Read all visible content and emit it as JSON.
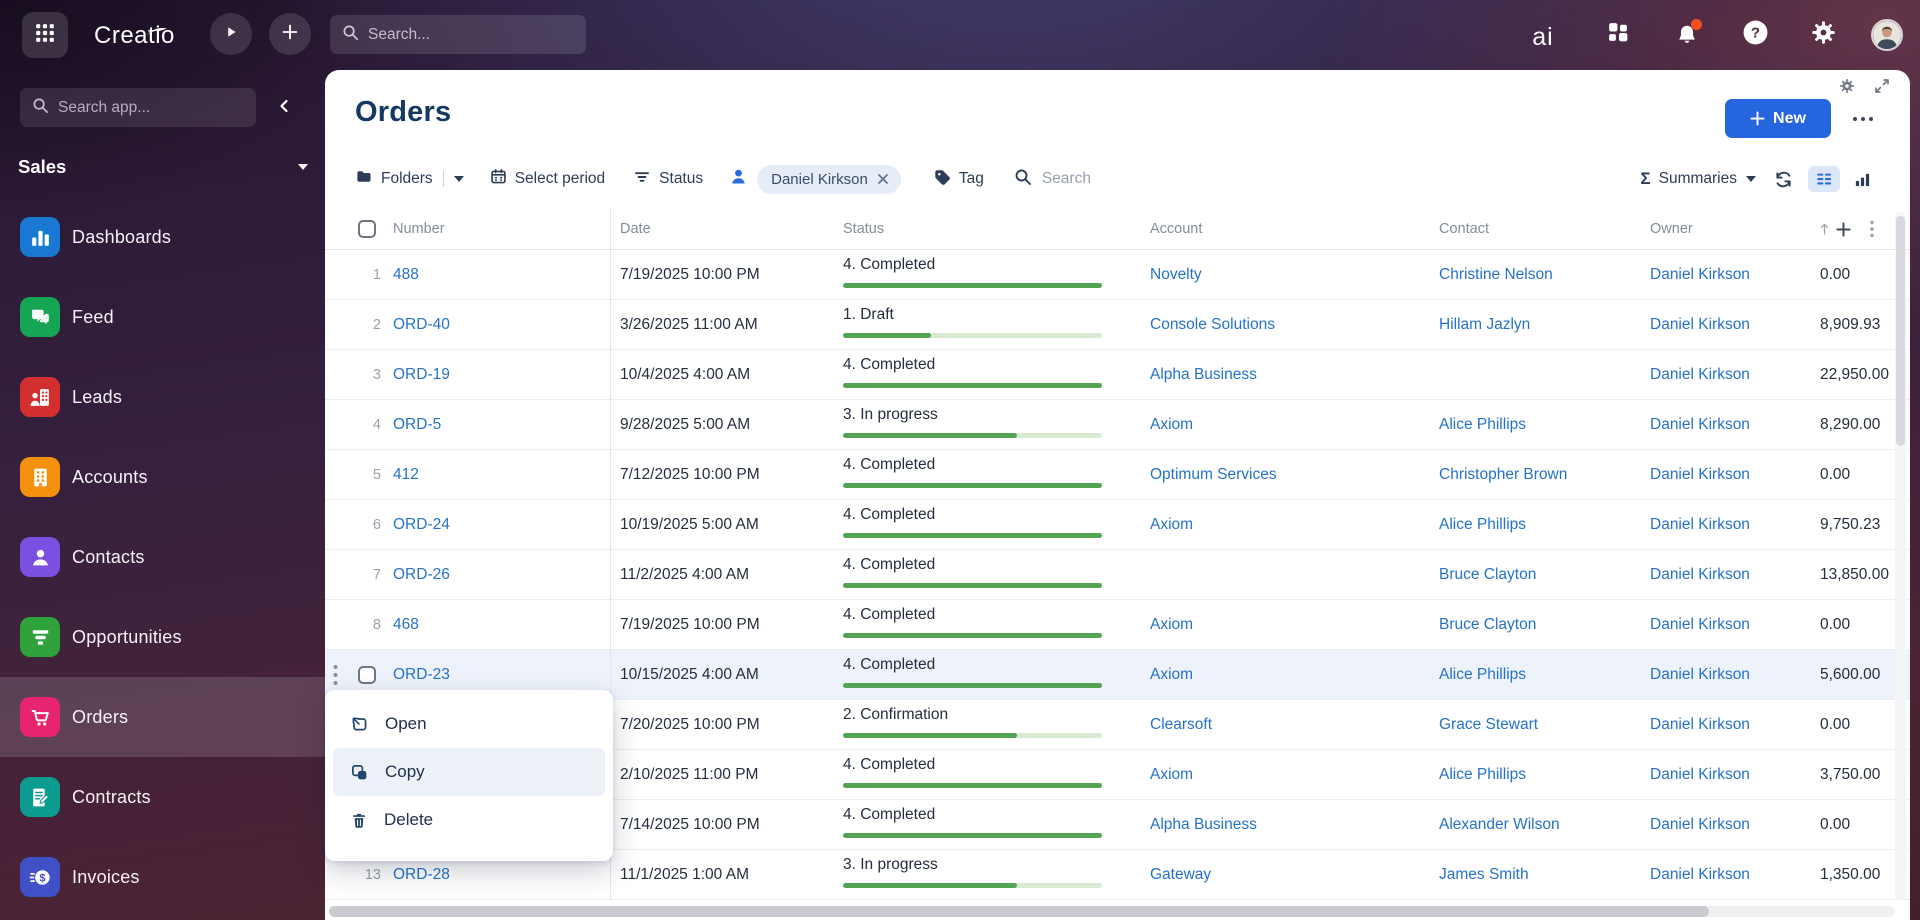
{
  "topbar": {
    "logo": "Creatio",
    "search_placeholder": "Search...",
    "copilot_label": "ai"
  },
  "sidebar": {
    "search_placeholder": "Search app...",
    "workspace": "Sales",
    "items": [
      {
        "label": "Dashboards",
        "icon": "bar-chart-icon",
        "color": "#1878d2",
        "selected": false
      },
      {
        "label": "Feed",
        "icon": "chat-icon",
        "color": "#16a455",
        "selected": false
      },
      {
        "label": "Leads",
        "icon": "lead-icon",
        "color": "#d42f2f",
        "selected": false
      },
      {
        "label": "Accounts",
        "icon": "building-icon",
        "color": "#f5900c",
        "selected": false
      },
      {
        "label": "Contacts",
        "icon": "person-icon",
        "color": "#7b4fe0",
        "selected": false
      },
      {
        "label": "Opportunities",
        "icon": "funnel-icon",
        "color": "#2fa33b",
        "selected": false
      },
      {
        "label": "Orders",
        "icon": "cart-icon",
        "color": "#e7256e",
        "selected": true
      },
      {
        "label": "Contracts",
        "icon": "contract-icon",
        "color": "#0b9b8f",
        "selected": false
      },
      {
        "label": "Invoices",
        "icon": "invoice-icon",
        "color": "#4150c6",
        "selected": false
      }
    ]
  },
  "page": {
    "title": "Orders",
    "new_button_label": "New",
    "filters": {
      "folders_label": "Folders",
      "select_period_label": "Select period",
      "status_label": "Status",
      "owner_chip": "Daniel Kirkson",
      "tag_label": "Tag",
      "search_placeholder": "Search"
    },
    "summaries_label": "Summaries"
  },
  "table": {
    "columns": [
      "Number",
      "Date",
      "Status",
      "Account",
      "Contact",
      "Owner"
    ],
    "header_icons": [
      "sort-up-icon",
      "add-column-icon",
      "column-menu-icon"
    ],
    "status_colors": {
      "track": "#d9ead3",
      "fill": "#55a455"
    },
    "rows": [
      {
        "num": "1",
        "number": "488",
        "date": "7/19/2025 10:00 PM",
        "status": "4. Completed",
        "progress": 1,
        "account": "Novelty",
        "contact": "Christine Nelson",
        "owner": "Daniel Kirkson",
        "total": "0.00",
        "hovered": false
      },
      {
        "num": "2",
        "number": "ORD-40",
        "date": "3/26/2025 11:00 AM",
        "status": "1. Draft",
        "progress": 0.34,
        "account": "Console Solutions",
        "contact": "Hillam Jazlyn",
        "owner": "Daniel Kirkson",
        "total": "8,909.93",
        "hovered": false
      },
      {
        "num": "3",
        "number": "ORD-19",
        "date": "10/4/2025 4:00 AM",
        "status": "4. Completed",
        "progress": 1,
        "account": "Alpha Business",
        "contact": "",
        "owner": "Daniel Kirkson",
        "total": "22,950.00",
        "hovered": false
      },
      {
        "num": "4",
        "number": "ORD-5",
        "date": "9/28/2025 5:00 AM",
        "status": "3. In progress",
        "progress": 0.67,
        "account": "Axiom",
        "contact": "Alice Phillips",
        "owner": "Daniel Kirkson",
        "total": "8,290.00",
        "hovered": false
      },
      {
        "num": "5",
        "number": "412",
        "date": "7/12/2025 10:00 PM",
        "status": "4. Completed",
        "progress": 1,
        "account": "Optimum Services",
        "contact": "Christopher Brown",
        "owner": "Daniel Kirkson",
        "total": "0.00",
        "hovered": false
      },
      {
        "num": "6",
        "number": "ORD-24",
        "date": "10/19/2025 5:00 AM",
        "status": "4. Completed",
        "progress": 1,
        "account": "Axiom",
        "contact": "Alice Phillips",
        "owner": "Daniel Kirkson",
        "total": "9,750.23",
        "hovered": false
      },
      {
        "num": "7",
        "number": "ORD-26",
        "date": "11/2/2025 4:00 AM",
        "status": "4. Completed",
        "progress": 1,
        "account": "",
        "contact": "Bruce Clayton",
        "owner": "Daniel Kirkson",
        "total": "13,850.00",
        "hovered": false
      },
      {
        "num": "8",
        "number": "468",
        "date": "7/19/2025 10:00 PM",
        "status": "4. Completed",
        "progress": 1,
        "account": "Axiom",
        "contact": "Bruce Clayton",
        "owner": "Daniel Kirkson",
        "total": "0.00",
        "hovered": false
      },
      {
        "num": "9",
        "number": "ORD-23",
        "date": "10/15/2025 4:00 AM",
        "status": "4. Completed",
        "progress": 1,
        "account": "Axiom",
        "contact": "Alice Phillips",
        "owner": "Daniel Kirkson",
        "total": "5,600.00",
        "hovered": true
      },
      {
        "num": "",
        "number": "",
        "date": "7/20/2025 10:00 PM",
        "status": "2. Confirmation",
        "progress": 0.67,
        "account": "Clearsoft",
        "contact": "Grace Stewart",
        "owner": "Daniel Kirkson",
        "total": "0.00",
        "hovered": false
      },
      {
        "num": "",
        "number": "",
        "date": "2/10/2025 11:00 PM",
        "status": "4. Completed",
        "progress": 1,
        "account": "Axiom",
        "contact": "Alice Phillips",
        "owner": "Daniel Kirkson",
        "total": "3,750.00",
        "hovered": false
      },
      {
        "num": "",
        "number": "",
        "date": "7/14/2025 10:00 PM",
        "status": "4. Completed",
        "progress": 1,
        "account": "Alpha Business",
        "contact": "Alexander Wilson",
        "owner": "Daniel Kirkson",
        "total": "0.00",
        "hovered": false
      },
      {
        "num": "13",
        "number": "ORD-28",
        "date": "11/1/2025 1:00 AM",
        "status": "3. In progress",
        "progress": 0.67,
        "account": "Gateway",
        "contact": "James Smith",
        "owner": "Daniel Kirkson",
        "total": "1,350.00",
        "hovered": false
      }
    ]
  },
  "context_menu": {
    "items": [
      {
        "label": "Open",
        "icon": "open-icon",
        "highlighted": false
      },
      {
        "label": "Copy",
        "icon": "copy-icon",
        "highlighted": true
      },
      {
        "label": "Delete",
        "icon": "delete-icon",
        "highlighted": false
      }
    ]
  },
  "colors": {
    "accent_blue": "#2565dd",
    "link_blue": "#2672c8",
    "title_navy": "#143a63",
    "orders_pink": "#e7256e",
    "notification_orange": "#f4511e"
  }
}
